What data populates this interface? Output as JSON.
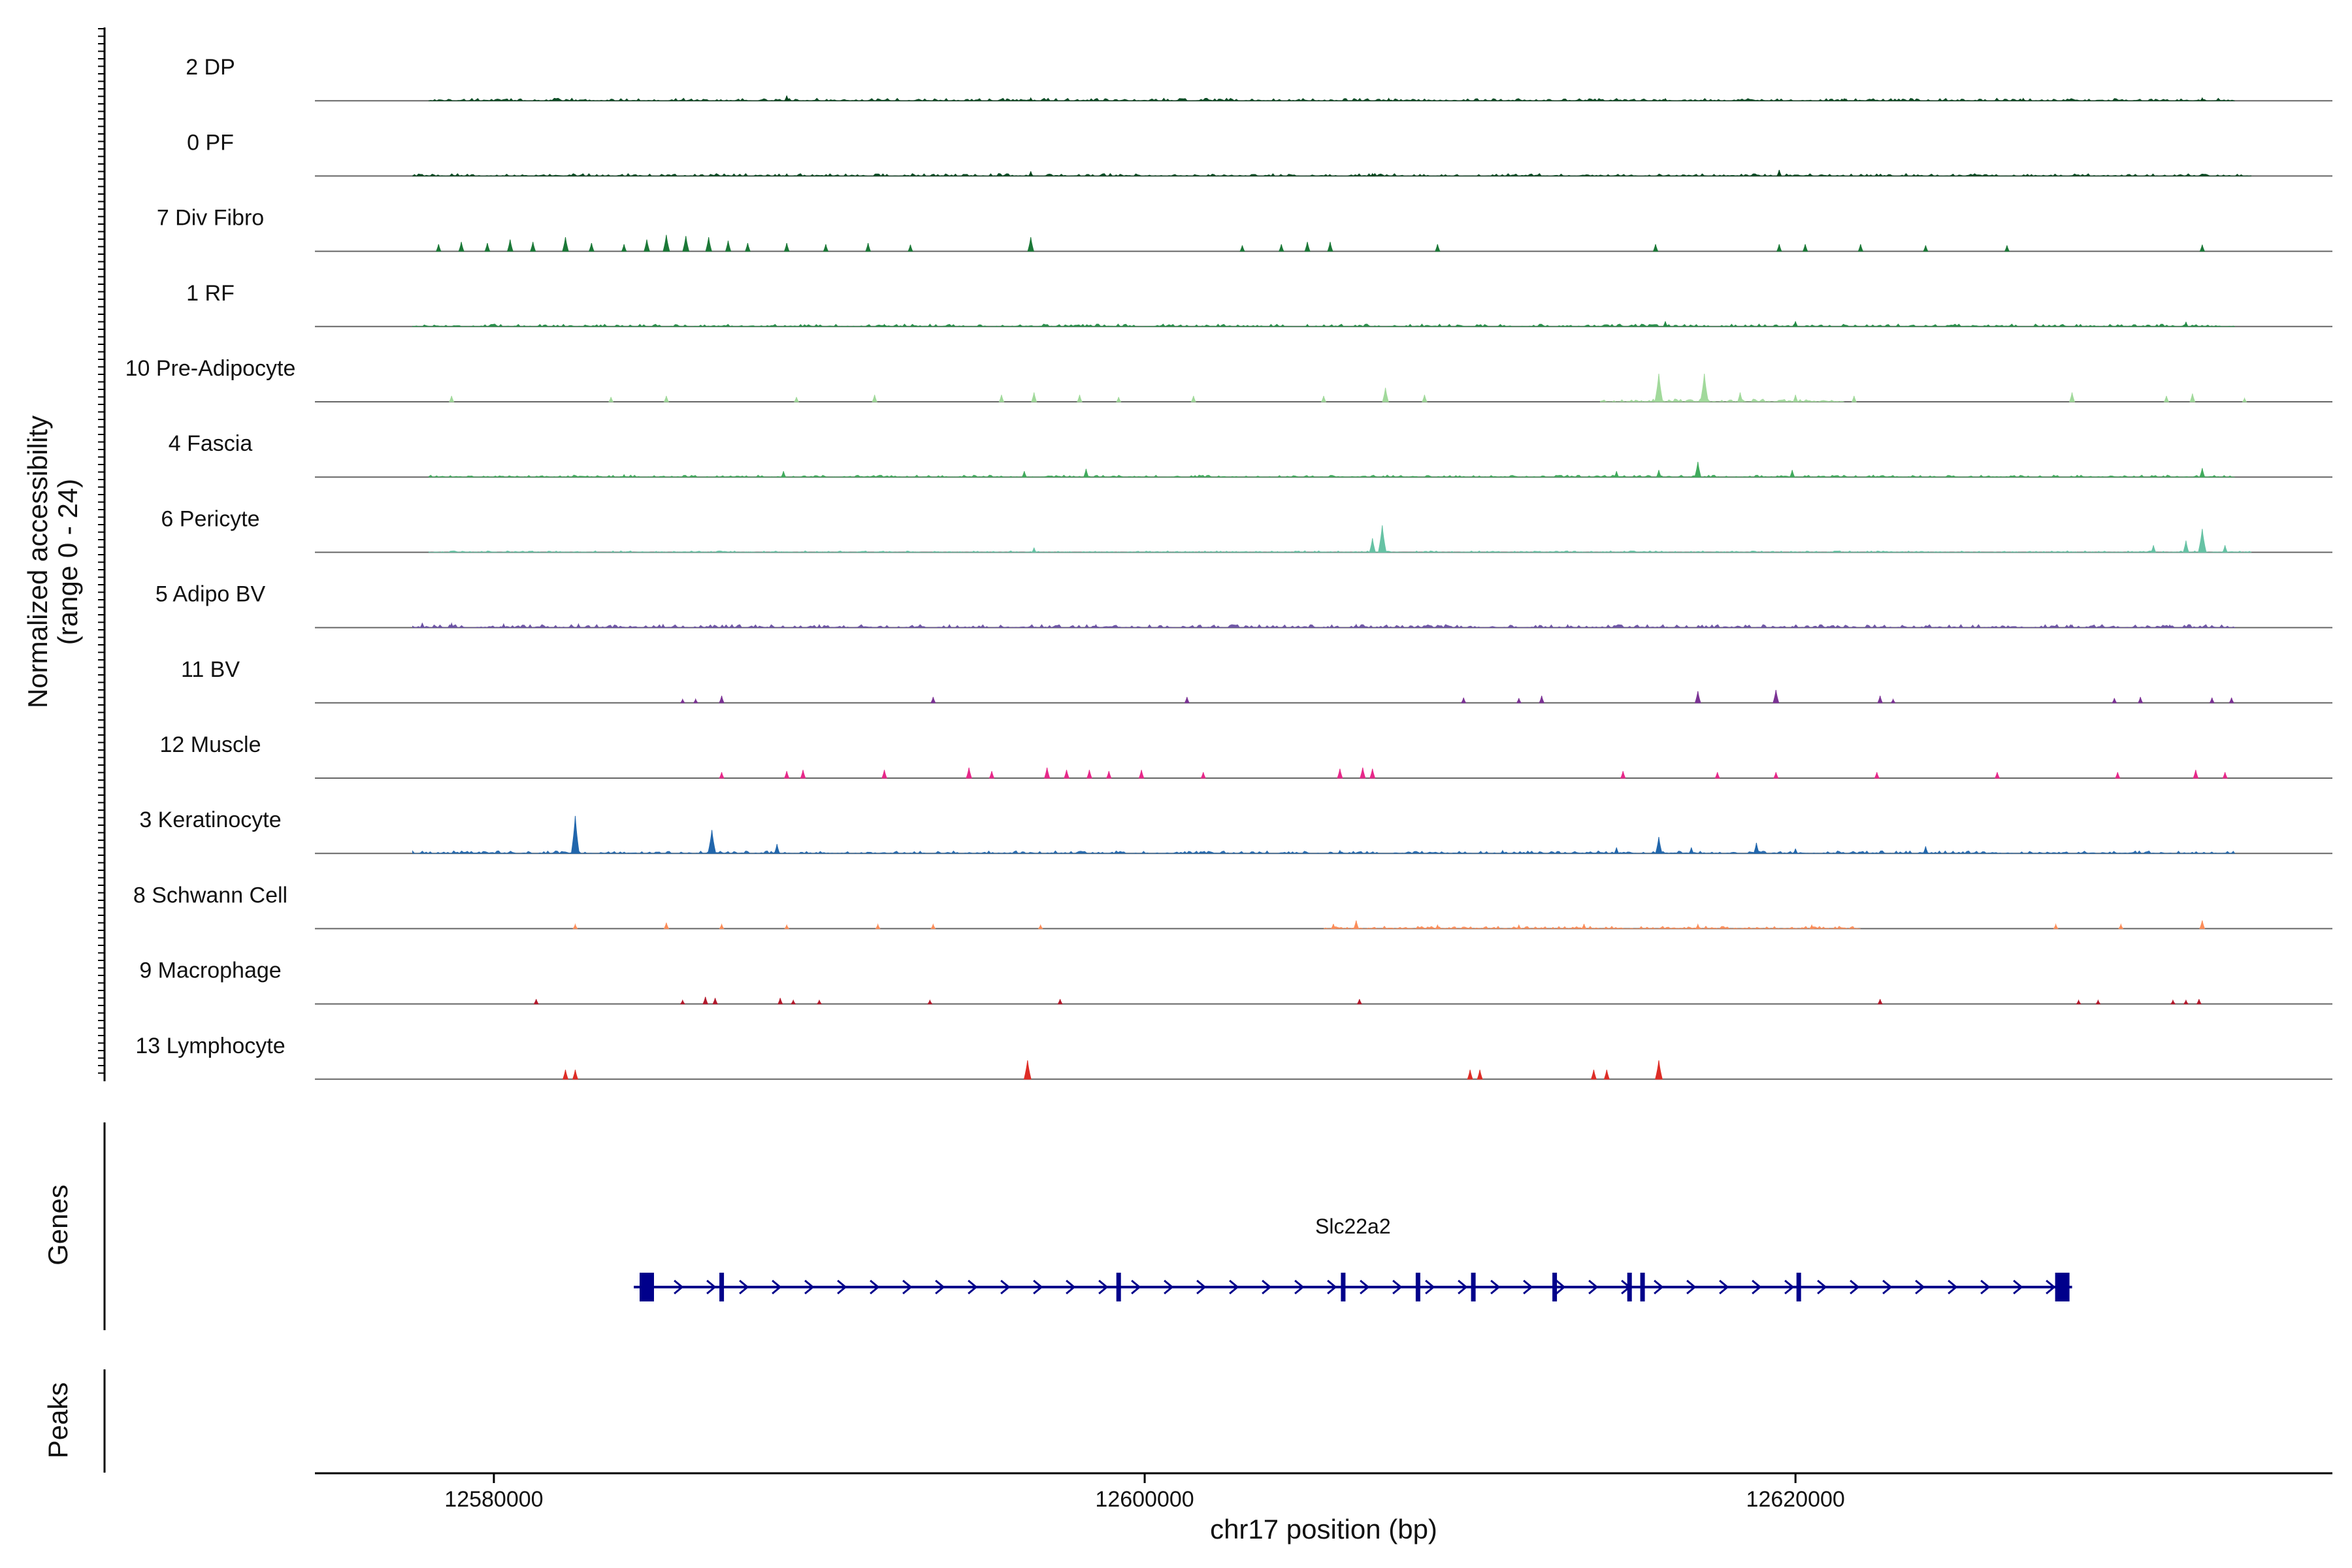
{
  "chart_data": {
    "type": "area",
    "title": "",
    "xlabel": "chr17 position (bp)",
    "ylabel_line1": "Normalized accessibility",
    "ylabel_line2": "(range 0 - 24)",
    "ylim": [
      0,
      24
    ],
    "xlim": [
      12574500,
      12636500
    ],
    "x_ticks": [
      12580000,
      12600000,
      12620000
    ],
    "x_tick_labels": [
      "12580000",
      "12600000",
      "12620000"
    ],
    "tracks": [
      {
        "name": "2 DP",
        "color": "#00441b",
        "baseline": [
          12578000,
          12633500
        ],
        "noise": 0.5,
        "peaks": [
          [
            12589000,
            2.2
          ],
          [
            12596500,
            1.2
          ],
          [
            12607500,
            1.0
          ],
          [
            12616000,
            0.9
          ],
          [
            12621500,
            0.9
          ],
          [
            12627000,
            1.0
          ],
          [
            12632500,
            1.2
          ]
        ]
      },
      {
        "name": "0 PF",
        "color": "#00441b",
        "baseline": [
          12577500,
          12634000
        ],
        "noise": 0.5,
        "peaks": [
          [
            12596500,
            2.0
          ],
          [
            12619500,
            2.6
          ],
          [
            12607000,
            1.0
          ],
          [
            12589000,
            0.9
          ]
        ]
      },
      {
        "name": "7 Div Fibro",
        "color": "#1b7837",
        "baseline": null,
        "noise": 0,
        "peaks": [
          [
            12578300,
            3
          ],
          [
            12579000,
            4
          ],
          [
            12579800,
            3.5
          ],
          [
            12580500,
            5
          ],
          [
            12581200,
            4
          ],
          [
            12582200,
            6
          ],
          [
            12583000,
            3.5
          ],
          [
            12584000,
            3
          ],
          [
            12584700,
            5
          ],
          [
            12585300,
            7
          ],
          [
            12585900,
            6.5
          ],
          [
            12586600,
            6
          ],
          [
            12587200,
            4.5
          ],
          [
            12587800,
            3.5
          ],
          [
            12589000,
            3.5
          ],
          [
            12590200,
            3
          ],
          [
            12591500,
            3.5
          ],
          [
            12592800,
            2.8
          ],
          [
            12596500,
            6
          ],
          [
            12603000,
            2.5
          ],
          [
            12604200,
            3
          ],
          [
            12605000,
            4
          ],
          [
            12605700,
            4
          ],
          [
            12609000,
            3
          ],
          [
            12615700,
            3
          ],
          [
            12619500,
            3
          ],
          [
            12620300,
            3
          ],
          [
            12622000,
            3
          ],
          [
            12624000,
            2.5
          ],
          [
            12626500,
            2.5
          ],
          [
            12632500,
            2.8
          ]
        ]
      },
      {
        "name": "1 RF",
        "color": "#238b45",
        "baseline": [
          12577500,
          12633500
        ],
        "noise": 0.5,
        "peaks": [
          [
            12616000,
            2.2
          ],
          [
            12620000,
            2.2
          ],
          [
            12632000,
            2.0
          ],
          [
            12592000,
            0.9
          ],
          [
            12605000,
            0.9
          ]
        ]
      },
      {
        "name": "10 Pre-Adipocyte",
        "color": "#a1d99b",
        "baseline": [
          12614000,
          12621500
        ],
        "noise": 0.6,
        "peaks": [
          [
            12578700,
            2.5
          ],
          [
            12583600,
            2
          ],
          [
            12585300,
            2.5
          ],
          [
            12589300,
            2
          ],
          [
            12591700,
            3
          ],
          [
            12595600,
            3
          ],
          [
            12596600,
            4
          ],
          [
            12598000,
            3
          ],
          [
            12599200,
            2
          ],
          [
            12601500,
            2.5
          ],
          [
            12605500,
            2.5
          ],
          [
            12607400,
            6
          ],
          [
            12608600,
            3
          ],
          [
            12615800,
            12
          ],
          [
            12617200,
            12
          ],
          [
            12618300,
            4
          ],
          [
            12620000,
            3
          ],
          [
            12621800,
            2.5
          ],
          [
            12628500,
            4
          ],
          [
            12631400,
            2.5
          ],
          [
            12632200,
            3.5
          ],
          [
            12633800,
            1.5
          ]
        ]
      },
      {
        "name": "4 Fascia",
        "color": "#41ab5d",
        "baseline": [
          12578000,
          12633500
        ],
        "noise": 0.4,
        "peaks": [
          [
            12588900,
            2.5
          ],
          [
            12596300,
            2.5
          ],
          [
            12598200,
            3.5
          ],
          [
            12614500,
            2.5
          ],
          [
            12615800,
            3
          ],
          [
            12617000,
            6.5
          ],
          [
            12619900,
            3
          ],
          [
            12632500,
            3.8
          ],
          [
            12584000,
            1
          ]
        ]
      },
      {
        "name": "6 Pericyte",
        "color": "#66c2a4",
        "baseline": [
          12578000,
          12634000
        ],
        "noise": 0.3,
        "peaks": [
          [
            12607000,
            6
          ],
          [
            12607300,
            11.5
          ],
          [
            12596600,
            2
          ],
          [
            12631000,
            3
          ],
          [
            12632000,
            5
          ],
          [
            12632500,
            10
          ],
          [
            12633200,
            3
          ]
        ]
      },
      {
        "name": "5 Adipo BV",
        "color": "#6a51a3",
        "baseline": [
          12577500,
          12633500
        ],
        "noise": 0.6,
        "peaks": [
          [
            12577800,
            2
          ],
          [
            12578700,
            1.8
          ],
          [
            12580300,
            1.5
          ],
          [
            12582600,
            1.5
          ],
          [
            12585200,
            1.3
          ],
          [
            12590000,
            1.2
          ],
          [
            12594000,
            1.2
          ],
          [
            12598500,
            1.2
          ],
          [
            12606500,
            1.3
          ],
          [
            12613000,
            1.2
          ],
          [
            12620000,
            1.1
          ],
          [
            12628500,
            1.1
          ],
          [
            12631500,
            1.1
          ]
        ]
      },
      {
        "name": "11 BV",
        "color": "#7b3294",
        "baseline": null,
        "noise": 0,
        "peaks": [
          [
            12585800,
            1.5
          ],
          [
            12586200,
            1.6
          ],
          [
            12587000,
            3
          ],
          [
            12593500,
            2.5
          ],
          [
            12601300,
            2.5
          ],
          [
            12609800,
            2.2
          ],
          [
            12611500,
            2
          ],
          [
            12612200,
            3
          ],
          [
            12617000,
            5
          ],
          [
            12619400,
            5.5
          ],
          [
            12622600,
            3
          ],
          [
            12623000,
            1.5
          ],
          [
            12629800,
            2
          ],
          [
            12630600,
            2.5
          ],
          [
            12632800,
            2.2
          ],
          [
            12633400,
            2.2
          ]
        ]
      },
      {
        "name": "12 Muscle",
        "color": "#e7298a",
        "baseline": null,
        "noise": 0,
        "peaks": [
          [
            12587000,
            2.5
          ],
          [
            12589000,
            3
          ],
          [
            12589500,
            3.5
          ],
          [
            12592000,
            3.5
          ],
          [
            12594600,
            4.5
          ],
          [
            12595300,
            3
          ],
          [
            12597000,
            4.5
          ],
          [
            12597600,
            3.5
          ],
          [
            12598300,
            3.5
          ],
          [
            12598900,
            3
          ],
          [
            12599900,
            3.5
          ],
          [
            12601800,
            2.5
          ],
          [
            12606000,
            4
          ],
          [
            12606700,
            4.5
          ],
          [
            12607000,
            4
          ],
          [
            12614700,
            3
          ],
          [
            12617600,
            2.5
          ],
          [
            12619400,
            2.5
          ],
          [
            12622500,
            2.5
          ],
          [
            12626200,
            2.5
          ],
          [
            12629900,
            2.5
          ],
          [
            12632300,
            3.5
          ],
          [
            12633200,
            2.5
          ]
        ]
      },
      {
        "name": "3 Keratinocyte",
        "color": "#2166ac",
        "baseline": [
          12577500,
          12633500
        ],
        "noise": 0.5,
        "peaks": [
          [
            12582500,
            16
          ],
          [
            12586700,
            10
          ],
          [
            12588700,
            4
          ],
          [
            12615800,
            7
          ],
          [
            12614500,
            2.5
          ],
          [
            12616800,
            2.5
          ],
          [
            12618800,
            4.5
          ],
          [
            12620000,
            2
          ],
          [
            12624000,
            3
          ],
          [
            12611000,
            1.2
          ],
          [
            12606000,
            1.2
          ]
        ]
      },
      {
        "name": "8 Schwann Cell",
        "color": "#fc8d59",
        "baseline": [
          12605500,
          12622000
        ],
        "noise": 0.5,
        "peaks": [
          [
            12582500,
            1.8
          ],
          [
            12585300,
            2.5
          ],
          [
            12587000,
            1.8
          ],
          [
            12589000,
            1.5
          ],
          [
            12591800,
            1.8
          ],
          [
            12593500,
            1.8
          ],
          [
            12596800,
            1.5
          ],
          [
            12605800,
            2
          ],
          [
            12606500,
            3.5
          ],
          [
            12609000,
            1.5
          ],
          [
            12611500,
            1.5
          ],
          [
            12613500,
            2
          ],
          [
            12617000,
            1.8
          ],
          [
            12620500,
            1.5
          ],
          [
            12628000,
            1.8
          ],
          [
            12630000,
            1.8
          ],
          [
            12632500,
            3.5
          ]
        ]
      },
      {
        "name": "9 Macrophage",
        "color": "#b2182b",
        "baseline": null,
        "noise": 0,
        "peaks": [
          [
            12581300,
            2
          ],
          [
            12585800,
            1.5
          ],
          [
            12586500,
            3
          ],
          [
            12586800,
            2.5
          ],
          [
            12588800,
            2.5
          ],
          [
            12589200,
            1.5
          ],
          [
            12590000,
            1.5
          ],
          [
            12593400,
            1.5
          ],
          [
            12597400,
            2
          ],
          [
            12606600,
            2
          ],
          [
            12622600,
            2
          ],
          [
            12628700,
            1.5
          ],
          [
            12629300,
            1.5
          ],
          [
            12631600,
            1.5
          ],
          [
            12632000,
            1.5
          ],
          [
            12632400,
            2
          ]
        ]
      },
      {
        "name": "13 Lymphocyte",
        "color": "#de2d26",
        "baseline": null,
        "noise": 0,
        "peaks": [
          [
            12582200,
            4
          ],
          [
            12582500,
            4
          ],
          [
            12596400,
            8
          ],
          [
            12610000,
            4
          ],
          [
            12610300,
            4
          ],
          [
            12613800,
            4
          ],
          [
            12614200,
            4
          ],
          [
            12615800,
            8
          ]
        ]
      }
    ],
    "genes": {
      "title": "Genes",
      "name": "Slc22a2",
      "strand": "+",
      "color": "#00008b",
      "start": 12584300,
      "end": 12628500,
      "exons": [
        12584700,
        12587000,
        12599200,
        12606100,
        12608400,
        12610100,
        12612600,
        12614900,
        12615300,
        12620100,
        12628200
      ]
    },
    "peaks_track": {
      "title": "Peaks"
    }
  }
}
